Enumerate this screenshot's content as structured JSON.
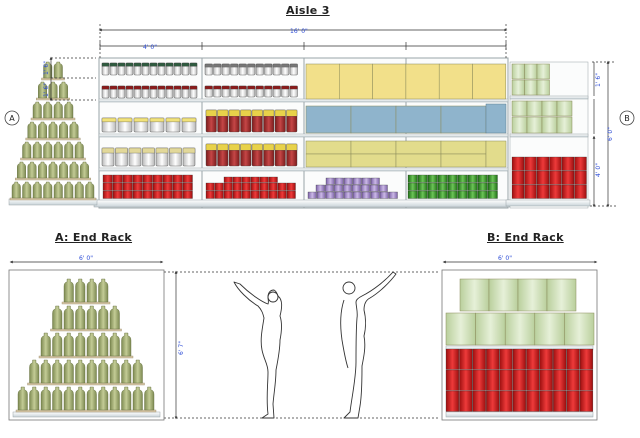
{
  "titles": {
    "aisle": "Aisle 3",
    "end_rack_a": "A: End Rack",
    "end_rack_b": "B: End Rack"
  },
  "markers": {
    "a": "A",
    "b": "B"
  },
  "dimensions": {
    "aisle_width": "16' 0\"",
    "section_width": "4' 0\"",
    "rack_a_width": "6' 0\"",
    "rack_b_width": "6' 0\"",
    "rack_a_height": "6' 7\"",
    "right_height": "6' 0\"",
    "right_upper": "1' 6\"",
    "right_lower": "4' 0\"",
    "left_upper": "1' 6\"",
    "left_lower": "1' 6\""
  },
  "colors": {
    "bottle": "#a8b27a",
    "bottle_dark": "#7d8a52",
    "can_red": "#d81e1e",
    "jar_red": "#a52a2a",
    "box_yellow": "#f2e08a",
    "box_blue": "#8fb4cc",
    "box_olive": "#e2dc8c",
    "can_purple": "#a68fc8",
    "can_green": "#3e9c2e",
    "crate": "#cfe0b8",
    "dim_blue": "#2b4bd6",
    "shelf": "#e9eef0"
  }
}
